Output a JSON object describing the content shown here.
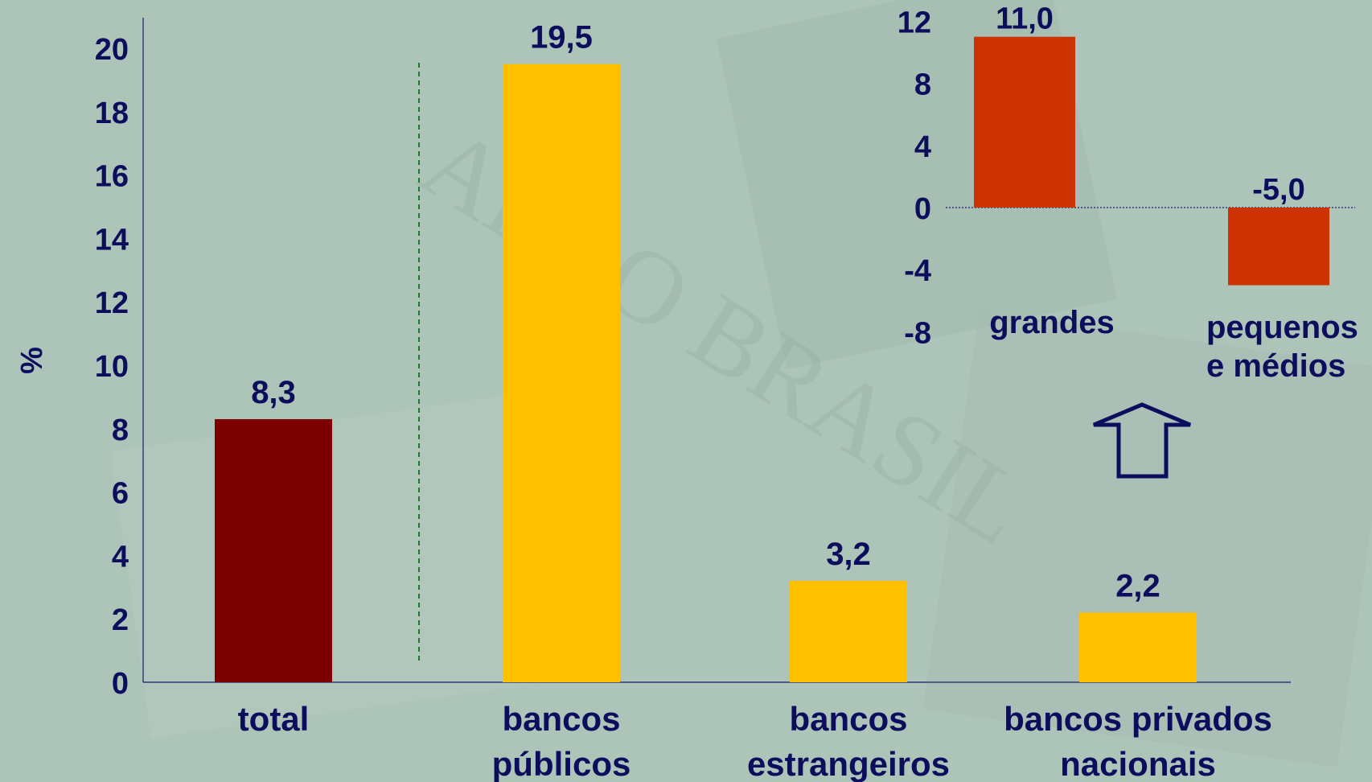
{
  "chart_data": [
    {
      "type": "bar",
      "ylabel": "%",
      "ylim": [
        0,
        20
      ],
      "yticks": [
        0,
        2,
        4,
        6,
        8,
        10,
        12,
        14,
        16,
        18,
        20
      ],
      "categories": [
        [
          "total"
        ],
        [
          "bancos",
          "públicos"
        ],
        [
          "bancos",
          "estrangeiros"
        ],
        [
          "bancos privados",
          "nacionais"
        ]
      ],
      "values": [
        8.3,
        19.5,
        3.2,
        2.2
      ],
      "value_labels": [
        "8,3",
        "19,5",
        "3,2",
        "2,2"
      ],
      "colors": [
        "#7d0000",
        "#ffc000",
        "#ffc000",
        "#ffc000"
      ],
      "grid": false
    },
    {
      "type": "bar",
      "ylim": [
        -8,
        12
      ],
      "yticks": [
        12,
        8,
        4,
        0,
        -4,
        -8
      ],
      "categories": [
        [
          "grandes"
        ],
        [
          "pequenos",
          "e médios"
        ]
      ],
      "values": [
        11.0,
        -5.0
      ],
      "value_labels": [
        "11,0",
        "-5,0"
      ],
      "colors": [
        "#cc3300",
        "#cc3300"
      ],
      "grid": false,
      "detail_of": "bancos privados nacionais"
    }
  ],
  "colors": {
    "axis_text": "#0d0d5e",
    "divider": "#1a7a2a",
    "arrow": "#0d0d5e"
  },
  "icons": {
    "arrow": "up-arrow-icon"
  }
}
